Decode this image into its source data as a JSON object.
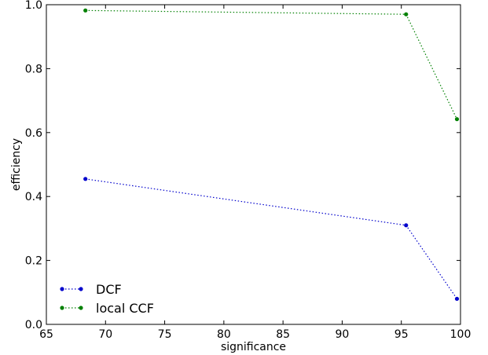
{
  "chart_data": {
    "type": "line",
    "xlabel": "significance",
    "ylabel": "efficiency",
    "xlim": [
      65,
      100
    ],
    "ylim": [
      0.0,
      1.0
    ],
    "xticks": [
      "65",
      "70",
      "75",
      "80",
      "85",
      "90",
      "95",
      "100"
    ],
    "yticks": [
      "0.0",
      "0.2",
      "0.4",
      "0.6",
      "0.8",
      "1.0"
    ],
    "grid": false,
    "legend_position": "lower-left",
    "series": [
      {
        "name": "DCF",
        "color": "#0000cc",
        "marker": "dot",
        "linestyle": "dotted",
        "x": [
          68.3,
          95.4,
          99.7
        ],
        "y": [
          0.455,
          0.31,
          0.08
        ]
      },
      {
        "name": "local CCF",
        "color": "#008000",
        "marker": "dot",
        "linestyle": "dotted",
        "x": [
          68.3,
          95.4,
          99.7
        ],
        "y": [
          0.982,
          0.97,
          0.642
        ]
      }
    ]
  }
}
